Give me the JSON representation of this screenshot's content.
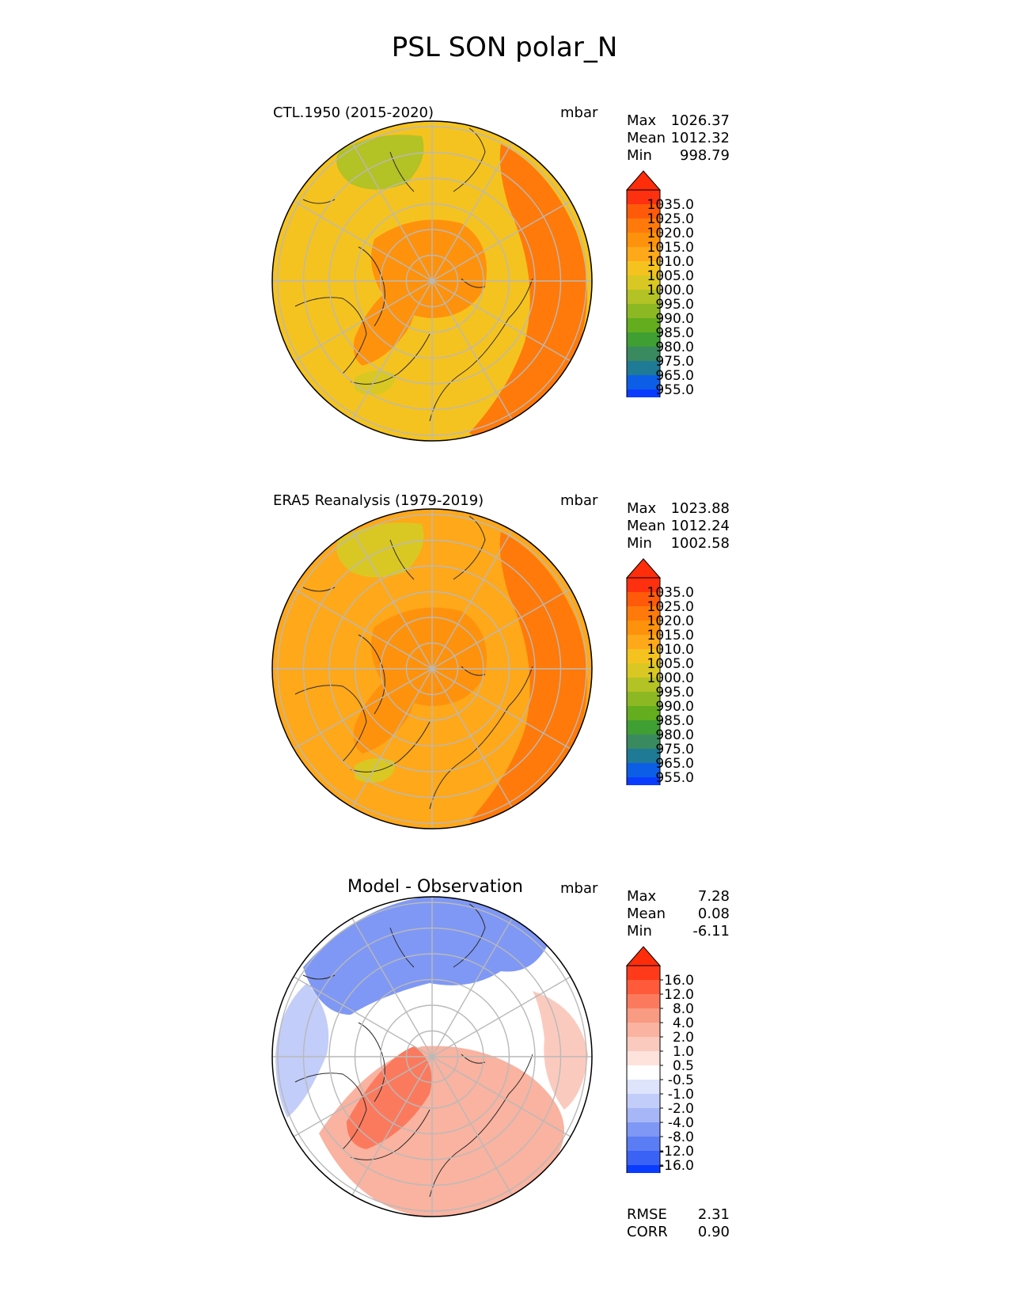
{
  "title": "PSL SON polar_N",
  "panels": [
    {
      "id": "model",
      "label": "CTL.1950 (2015-2020)",
      "units": "mbar",
      "stats": [
        {
          "name": "Max",
          "value": "1026.37"
        },
        {
          "name": "Mean",
          "value": "1012.32"
        },
        {
          "name": "Min",
          "value": "998.79"
        }
      ],
      "colorbar": {
        "ticks": [
          "1035.0",
          "1025.0",
          "1020.0",
          "1015.0",
          "1010.0",
          "1005.0",
          "1000.0",
          "995.0",
          "990.0",
          "985.0",
          "980.0",
          "975.0",
          "965.0",
          "955.0"
        ],
        "colors": [
          "#ff3010",
          "#ff5a0a",
          "#ff7a0a",
          "#ff920c",
          "#ffa81a",
          "#f5c31f",
          "#d9c823",
          "#b3c225",
          "#8cb823",
          "#63ad1e",
          "#3f9f33",
          "#3a8a5f",
          "#1f7a96",
          "#0c5ee6",
          "#0a3cff"
        ],
        "extend_top": "#ff2d0a",
        "extend_bottom": "#0a3cff"
      },
      "regions": [
        {
          "type": "base",
          "color": "#f5c31f"
        },
        {
          "type": "rim-east",
          "color": "#ff7a0a"
        },
        {
          "type": "core",
          "color": "#ff920c"
        },
        {
          "type": "greenland",
          "color": "#ff920c"
        },
        {
          "type": "low-top",
          "color": "#b3c225"
        },
        {
          "type": "low-bottom",
          "color": "#d9c823"
        }
      ]
    },
    {
      "id": "obs",
      "label": "ERA5 Reanalysis (1979-2019)",
      "units": "mbar",
      "stats": [
        {
          "name": "Max",
          "value": "1023.88"
        },
        {
          "name": "Mean",
          "value": "1012.24"
        },
        {
          "name": "Min",
          "value": "1002.58"
        }
      ],
      "colorbar": {
        "ticks": [
          "1035.0",
          "1025.0",
          "1020.0",
          "1015.0",
          "1010.0",
          "1005.0",
          "1000.0",
          "995.0",
          "990.0",
          "985.0",
          "980.0",
          "975.0",
          "965.0",
          "955.0"
        ],
        "colors": [
          "#ff3010",
          "#ff5a0a",
          "#ff7a0a",
          "#ff920c",
          "#ffa81a",
          "#f5c31f",
          "#d9c823",
          "#b3c225",
          "#8cb823",
          "#63ad1e",
          "#3f9f33",
          "#3a8a5f",
          "#1f7a96",
          "#0c5ee6",
          "#0a3cff"
        ],
        "extend_top": "#ff2d0a",
        "extend_bottom": "#0a3cff"
      },
      "regions": [
        {
          "type": "base",
          "color": "#ffa81a"
        },
        {
          "type": "rim-east",
          "color": "#ff7a0a"
        },
        {
          "type": "core",
          "color": "#ff920c"
        },
        {
          "type": "greenland",
          "color": "#ff920c"
        },
        {
          "type": "low-top",
          "color": "#d9c823"
        },
        {
          "type": "low-bottom",
          "color": "#d9c823"
        }
      ]
    },
    {
      "id": "diff",
      "label": "Model - Observation",
      "units": "mbar",
      "stats": [
        {
          "name": "Max",
          "value": "7.28"
        },
        {
          "name": "Mean",
          "value": "0.08"
        },
        {
          "name": "Min",
          "value": "-6.11"
        }
      ],
      "colorbar": {
        "ticks": [
          "16.0",
          "12.0",
          "8.0",
          "4.0",
          "2.0",
          "1.0",
          "0.5",
          "-0.5",
          "-1.0",
          "-2.0",
          "-4.0",
          "-8.0",
          "-12.0",
          "-16.0"
        ],
        "colors": [
          "#ff3a1a",
          "#ff5a3a",
          "#fb7a5e",
          "#f99a82",
          "#f9b3a0",
          "#fbcabe",
          "#fde3dc",
          "#ffffff",
          "#dde4fb",
          "#c2cdf9",
          "#a6b6f7",
          "#7f98f5",
          "#5a7df5",
          "#3a62f5",
          "#0a3cff"
        ],
        "extend_top": "#ff2d0a",
        "extend_bottom": "#0a3cff"
      },
      "regions": [
        {
          "type": "base",
          "color": "#ffffff"
        },
        {
          "type": "blue-top",
          "color": "#7f98f5"
        },
        {
          "type": "blue-left",
          "color": "#c2cdf9"
        },
        {
          "type": "red-bottom",
          "color": "#f9b3a0"
        },
        {
          "type": "red-core",
          "color": "#fb7a5e"
        },
        {
          "type": "red-right",
          "color": "#fbcabe"
        }
      ],
      "extra_stats": [
        {
          "name": "RMSE",
          "value": "2.31"
        },
        {
          "name": "CORR",
          "value": "0.90"
        }
      ]
    }
  ],
  "chart_data": {
    "type": "heatmap",
    "title": "PSL SON polar_N",
    "projection": "north polar stereographic",
    "grid": true,
    "panels": [
      {
        "label": "CTL.1950 (2015-2020)",
        "units": "mbar",
        "max": 1026.37,
        "mean": 1012.32,
        "min": 998.79,
        "levels": [
          955,
          965,
          975,
          980,
          985,
          990,
          995,
          1000,
          1005,
          1010,
          1015,
          1020,
          1025,
          1035
        ]
      },
      {
        "label": "ERA5 Reanalysis (1979-2019)",
        "units": "mbar",
        "max": 1023.88,
        "mean": 1012.24,
        "min": 1002.58,
        "levels": [
          955,
          965,
          975,
          980,
          985,
          990,
          995,
          1000,
          1005,
          1010,
          1015,
          1020,
          1025,
          1035
        ]
      },
      {
        "label": "Model - Observation",
        "units": "mbar",
        "max": 7.28,
        "mean": 0.08,
        "min": -6.11,
        "rmse": 2.31,
        "corr": 0.9,
        "levels": [
          -16,
          -12,
          -8,
          -4,
          -2,
          -1,
          -0.5,
          0.5,
          1,
          2,
          4,
          8,
          12,
          16
        ]
      }
    ]
  }
}
